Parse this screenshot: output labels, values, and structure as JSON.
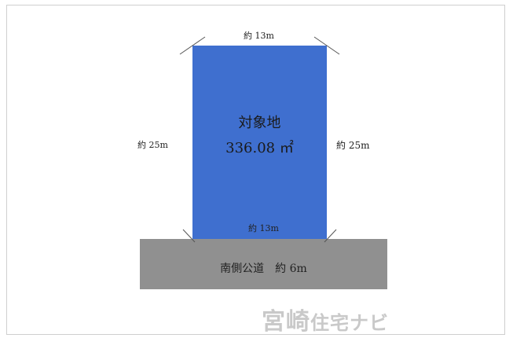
{
  "plot": {
    "name": "対象地",
    "area": "336.08 ㎡",
    "width_top": "約 13m",
    "width_bottom": "約 13m",
    "depth_left": "約 25m",
    "depth_right": "約 25m",
    "fill_color": "#3f6fcf"
  },
  "road": {
    "label": "南側公道　約 6m",
    "fill_color": "#909090"
  },
  "watermark": {
    "main": "宮崎",
    "sub": "住宅ナビ"
  }
}
